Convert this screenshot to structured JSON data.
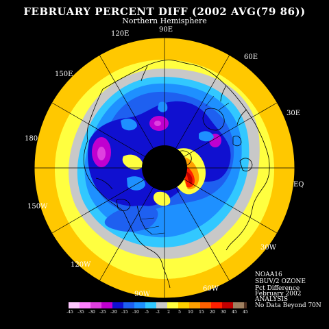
{
  "header": {
    "title": "FEBRUARY PERCENT DIFF (2002 AVG(79 86))",
    "subtitle": "Northern Hemisphere"
  },
  "map": {
    "projection": "polar stereographic",
    "center": "North Pole",
    "longitude_labels": {
      "lon_90e": "90E",
      "lon_120e": "120E",
      "lon_60e": "60E",
      "lon_150e": "150E",
      "lon_30e": "30E",
      "lon_180": "180",
      "lon_eq": "EQ",
      "lon_150w": "150W",
      "lon_30w": "30W",
      "lon_120w": "120W",
      "lon_60w": "60W",
      "lon_90w": "90W"
    }
  },
  "info": {
    "line1": "NOAA16",
    "line2": "SBUV/2 OZONE",
    "line3": "Pct Difference",
    "line4": "February 2002",
    "line5": "ANALYSIS"
  },
  "legend": {
    "note": "No Data Beyond 70N",
    "ticks": [
      "-45",
      "-35",
      "-30",
      "-25",
      "-20",
      "-15",
      "-10",
      "-5",
      "-2",
      "2",
      "5",
      "10",
      "15",
      "20",
      "30",
      "45",
      "45"
    ],
    "colors": [
      "#ffc8ff",
      "#ff80ff",
      "#e040e0",
      "#c000d0",
      "#1010d0",
      "#1e60f0",
      "#1e90ff",
      "#32c8ff",
      "#c8c8c8",
      "#ffff40",
      "#ffd000",
      "#ffa000",
      "#ff6000",
      "#ff2000",
      "#c00000",
      "#a08060",
      "#503020"
    ]
  },
  "chart_data": {
    "type": "heatmap",
    "quantity": "Ozone percent difference",
    "month": "February 2002",
    "contour_levels": [
      -45,
      -35,
      -30,
      -25,
      -20,
      -15,
      -10,
      -5,
      -2,
      2,
      5,
      10,
      15,
      20,
      30,
      45
    ]
  }
}
